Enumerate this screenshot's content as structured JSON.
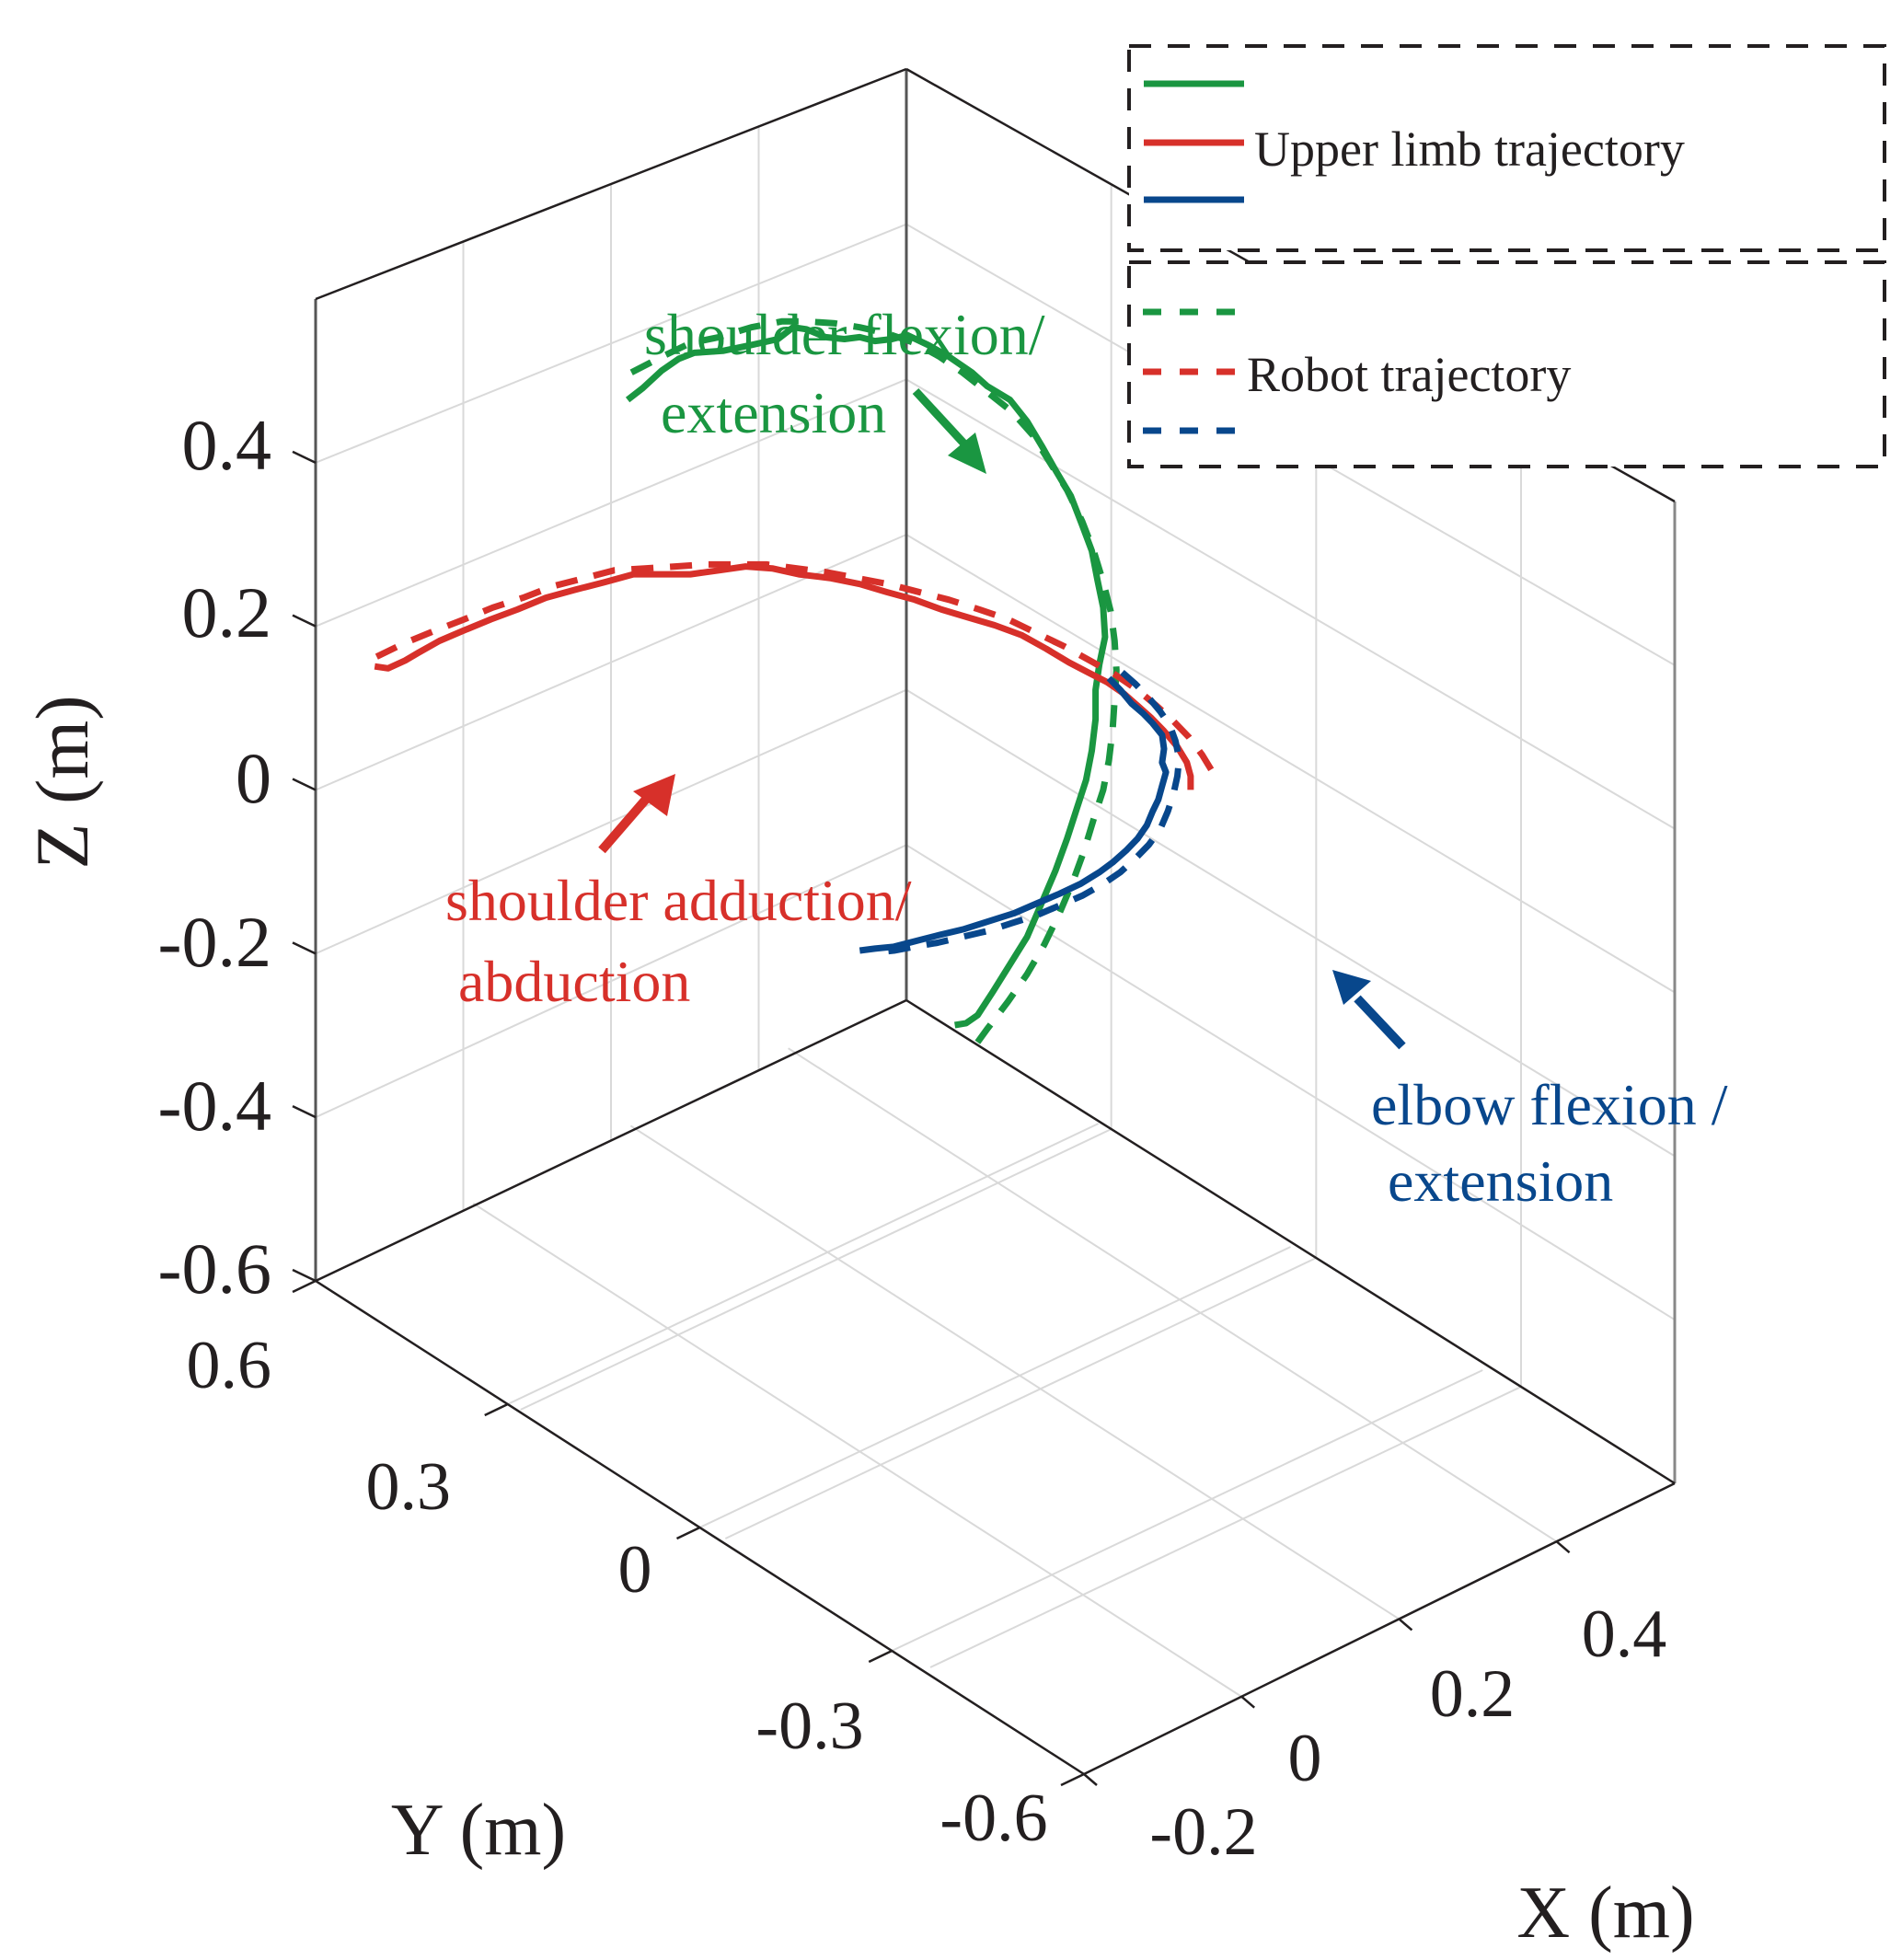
{
  "chart_data": {
    "type": "line",
    "projection": "3d",
    "title": "",
    "xlabel": "X (m)",
    "ylabel": "Y (m)",
    "zlabel": "Z (m)",
    "xlim": [
      -0.2,
      0.55
    ],
    "ylim": [
      -0.6,
      0.6
    ],
    "zlim": [
      -0.6,
      0.6
    ],
    "x_ticks": [
      "-0.2",
      "0",
      "0.2",
      "0.4"
    ],
    "y_ticks": [
      "0.6",
      "0.3",
      "0",
      "-0.3",
      "-0.6"
    ],
    "z_ticks": [
      "0.4",
      "0.2",
      "0",
      "-0.2",
      "-0.4",
      "-0.6"
    ],
    "grid": true,
    "colors": {
      "green": "#1a9641",
      "red": "#d7302a",
      "blue": "#08478c",
      "axis": "#231f20",
      "grid": "#d9d9d9"
    },
    "legend": {
      "placement": "top-right",
      "groups": [
        {
          "label": "Upper limb trajectory",
          "style": "solid",
          "colors": [
            "green",
            "red",
            "blue"
          ]
        },
        {
          "label": "Robot trajectory",
          "style": "dashed",
          "colors": [
            "green",
            "red",
            "blue"
          ]
        }
      ]
    },
    "annotations": [
      {
        "lines": [
          "shoulder flexion/",
          "extension"
        ],
        "color": "green"
      },
      {
        "lines": [
          "shoulder adduction/",
          "abduction"
        ],
        "color": "red"
      },
      {
        "lines": [
          "elbow flexion /",
          "extension"
        ],
        "color": "blue"
      }
    ],
    "series": [
      {
        "name": "Upper limb trajectory - shoulder flexion/extension",
        "color": "green",
        "style": "solid",
        "screen_path_note": "points given as [u,v] in normalized figure coordinates (0-1) of the plot canvas",
        "points": [
          [
            0.33,
            0.204
          ],
          [
            0.338,
            0.198
          ],
          [
            0.348,
            0.189
          ],
          [
            0.357,
            0.183
          ],
          [
            0.365,
            0.18
          ],
          [
            0.38,
            0.179
          ],
          [
            0.395,
            0.176
          ],
          [
            0.409,
            0.173
          ],
          [
            0.417,
            0.167
          ],
          [
            0.424,
            0.168
          ],
          [
            0.434,
            0.172
          ],
          [
            0.444,
            0.173
          ],
          [
            0.452,
            0.172
          ],
          [
            0.46,
            0.174
          ],
          [
            0.469,
            0.173
          ],
          [
            0.477,
            0.171
          ],
          [
            0.488,
            0.176
          ],
          [
            0.499,
            0.182
          ],
          [
            0.511,
            0.19
          ],
          [
            0.519,
            0.197
          ],
          [
            0.531,
            0.204
          ],
          [
            0.54,
            0.215
          ],
          [
            0.548,
            0.228
          ],
          [
            0.555,
            0.24
          ],
          [
            0.563,
            0.253
          ],
          [
            0.569,
            0.268
          ],
          [
            0.574,
            0.281
          ],
          [
            0.577,
            0.296
          ],
          [
            0.58,
            0.31
          ],
          [
            0.581,
            0.325
          ],
          [
            0.578,
            0.339
          ],
          [
            0.576,
            0.352
          ],
          [
            0.576,
            0.367
          ],
          [
            0.574,
            0.383
          ],
          [
            0.571,
            0.398
          ],
          [
            0.566,
            0.413
          ],
          [
            0.561,
            0.428
          ],
          [
            0.555,
            0.444
          ],
          [
            0.548,
            0.46
          ],
          [
            0.54,
            0.478
          ],
          [
            0.531,
            0.492
          ],
          [
            0.522,
            0.506
          ],
          [
            0.514,
            0.518
          ],
          [
            0.508,
            0.522
          ],
          [
            0.502,
            0.523
          ]
        ]
      },
      {
        "name": "Robot trajectory - shoulder flexion/extension",
        "color": "green",
        "style": "dashed",
        "points": [
          [
            0.332,
            0.19
          ],
          [
            0.348,
            0.182
          ],
          [
            0.363,
            0.175
          ],
          [
            0.378,
            0.172
          ],
          [
            0.395,
            0.167
          ],
          [
            0.411,
            0.164
          ],
          [
            0.424,
            0.164
          ],
          [
            0.439,
            0.165
          ],
          [
            0.452,
            0.167
          ],
          [
            0.466,
            0.17
          ],
          [
            0.481,
            0.175
          ],
          [
            0.494,
            0.182
          ],
          [
            0.506,
            0.19
          ],
          [
            0.519,
            0.2
          ],
          [
            0.532,
            0.21
          ],
          [
            0.543,
            0.222
          ],
          [
            0.552,
            0.236
          ],
          [
            0.561,
            0.25
          ],
          [
            0.569,
            0.266
          ],
          [
            0.575,
            0.281
          ],
          [
            0.58,
            0.297
          ],
          [
            0.584,
            0.312
          ],
          [
            0.586,
            0.327
          ],
          [
            0.587,
            0.342
          ],
          [
            0.586,
            0.357
          ],
          [
            0.585,
            0.372
          ],
          [
            0.583,
            0.388
          ],
          [
            0.58,
            0.403
          ],
          [
            0.575,
            0.418
          ],
          [
            0.57,
            0.434
          ],
          [
            0.564,
            0.45
          ],
          [
            0.557,
            0.466
          ],
          [
            0.549,
            0.482
          ],
          [
            0.54,
            0.497
          ],
          [
            0.53,
            0.511
          ],
          [
            0.519,
            0.525
          ],
          [
            0.51,
            0.537
          ]
        ]
      },
      {
        "name": "Upper limb trajectory - shoulder adduction/abduction",
        "color": "red",
        "style": "solid",
        "points": [
          [
            0.197,
            0.34
          ],
          [
            0.204,
            0.341
          ],
          [
            0.213,
            0.337
          ],
          [
            0.22,
            0.333
          ],
          [
            0.231,
            0.327
          ],
          [
            0.243,
            0.322
          ],
          [
            0.258,
            0.316
          ],
          [
            0.272,
            0.311
          ],
          [
            0.287,
            0.305
          ],
          [
            0.302,
            0.301
          ],
          [
            0.318,
            0.297
          ],
          [
            0.333,
            0.293
          ],
          [
            0.349,
            0.293
          ],
          [
            0.363,
            0.293
          ],
          [
            0.378,
            0.291
          ],
          [
            0.392,
            0.289
          ],
          [
            0.406,
            0.29
          ],
          [
            0.42,
            0.293
          ],
          [
            0.437,
            0.295
          ],
          [
            0.452,
            0.298
          ],
          [
            0.466,
            0.302
          ],
          [
            0.481,
            0.306
          ],
          [
            0.495,
            0.311
          ],
          [
            0.509,
            0.315
          ],
          [
            0.523,
            0.319
          ],
          [
            0.537,
            0.324
          ],
          [
            0.55,
            0.331
          ],
          [
            0.562,
            0.338
          ],
          [
            0.572,
            0.343
          ],
          [
            0.582,
            0.348
          ],
          [
            0.591,
            0.354
          ],
          [
            0.598,
            0.36
          ],
          [
            0.605,
            0.366
          ],
          [
            0.612,
            0.373
          ],
          [
            0.619,
            0.381
          ],
          [
            0.624,
            0.389
          ],
          [
            0.626,
            0.396
          ],
          [
            0.626,
            0.403
          ]
        ]
      },
      {
        "name": "Robot trajectory - shoulder adduction/abduction",
        "color": "red",
        "style": "dashed",
        "points": [
          [
            0.198,
            0.335
          ],
          [
            0.213,
            0.328
          ],
          [
            0.228,
            0.322
          ],
          [
            0.244,
            0.316
          ],
          [
            0.259,
            0.31
          ],
          [
            0.275,
            0.305
          ],
          [
            0.291,
            0.299
          ],
          [
            0.307,
            0.295
          ],
          [
            0.323,
            0.291
          ],
          [
            0.339,
            0.29
          ],
          [
            0.355,
            0.289
          ],
          [
            0.371,
            0.288
          ],
          [
            0.387,
            0.288
          ],
          [
            0.403,
            0.288
          ],
          [
            0.419,
            0.29
          ],
          [
            0.435,
            0.292
          ],
          [
            0.451,
            0.295
          ],
          [
            0.467,
            0.298
          ],
          [
            0.483,
            0.302
          ],
          [
            0.499,
            0.306
          ],
          [
            0.515,
            0.311
          ],
          [
            0.53,
            0.316
          ],
          [
            0.545,
            0.323
          ],
          [
            0.56,
            0.33
          ],
          [
            0.573,
            0.337
          ],
          [
            0.586,
            0.344
          ],
          [
            0.598,
            0.352
          ],
          [
            0.608,
            0.36
          ],
          [
            0.617,
            0.368
          ],
          [
            0.625,
            0.376
          ],
          [
            0.632,
            0.385
          ],
          [
            0.637,
            0.393
          ]
        ]
      },
      {
        "name": "Upper limb trajectory - elbow flexion/extension",
        "color": "blue",
        "style": "solid",
        "points": [
          [
            0.583,
            0.346
          ],
          [
            0.589,
            0.352
          ],
          [
            0.595,
            0.359
          ],
          [
            0.601,
            0.364
          ],
          [
            0.606,
            0.369
          ],
          [
            0.611,
            0.375
          ],
          [
            0.612,
            0.382
          ],
          [
            0.611,
            0.389
          ],
          [
            0.613,
            0.394
          ],
          [
            0.611,
            0.401
          ],
          [
            0.609,
            0.408
          ],
          [
            0.606,
            0.414
          ],
          [
            0.603,
            0.421
          ],
          [
            0.598,
            0.428
          ],
          [
            0.592,
            0.434
          ],
          [
            0.585,
            0.44
          ],
          [
            0.578,
            0.445
          ],
          [
            0.568,
            0.451
          ],
          [
            0.557,
            0.456
          ],
          [
            0.545,
            0.461
          ],
          [
            0.533,
            0.466
          ],
          [
            0.52,
            0.47
          ],
          [
            0.507,
            0.474
          ],
          [
            0.494,
            0.477
          ],
          [
            0.482,
            0.48
          ],
          [
            0.47,
            0.483
          ],
          [
            0.46,
            0.484
          ],
          [
            0.452,
            0.485
          ]
        ]
      },
      {
        "name": "Robot trajectory - elbow flexion/extension",
        "color": "blue",
        "style": "dashed",
        "points": [
          [
            0.59,
            0.343
          ],
          [
            0.597,
            0.349
          ],
          [
            0.604,
            0.356
          ],
          [
            0.61,
            0.363
          ],
          [
            0.615,
            0.37
          ],
          [
            0.618,
            0.378
          ],
          [
            0.62,
            0.387
          ],
          [
            0.619,
            0.396
          ],
          [
            0.617,
            0.405
          ],
          [
            0.614,
            0.414
          ],
          [
            0.61,
            0.423
          ],
          [
            0.604,
            0.431
          ],
          [
            0.597,
            0.438
          ],
          [
            0.589,
            0.445
          ],
          [
            0.58,
            0.451
          ],
          [
            0.569,
            0.457
          ],
          [
            0.557,
            0.462
          ],
          [
            0.545,
            0.467
          ],
          [
            0.532,
            0.471
          ],
          [
            0.519,
            0.475
          ],
          [
            0.506,
            0.478
          ],
          [
            0.493,
            0.481
          ],
          [
            0.481,
            0.483
          ],
          [
            0.47,
            0.485
          ],
          [
            0.46,
            0.486
          ]
        ]
      }
    ]
  }
}
